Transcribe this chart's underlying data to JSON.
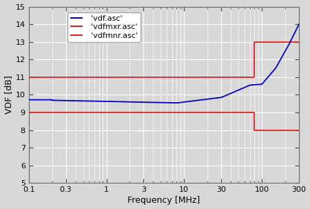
{
  "title": "",
  "xlabel": "Frequency [MHz]",
  "ylabel": "VDF [dB]",
  "xlim_log": [
    0.1,
    300
  ],
  "ylim": [
    5,
    15
  ],
  "yticks": [
    5,
    6,
    7,
    8,
    9,
    10,
    11,
    12,
    13,
    14,
    15
  ],
  "xtick_labels": [
    "0.1",
    "0.3",
    "1",
    "3",
    "10",
    "30",
    "100",
    "300"
  ],
  "xtick_positions": [
    0.1,
    0.3,
    1,
    3,
    10,
    30,
    100,
    300
  ],
  "background_color": "#d8d8d8",
  "grid_color": "#ffffff",
  "blue_color": "#0000cc",
  "red_color": "#dd2222",
  "vdfmxr": {
    "x": [
      0.1,
      80,
      80,
      300
    ],
    "y": [
      11.0,
      11.0,
      13.0,
      13.0
    ]
  },
  "vdfmnr": {
    "x": [
      0.1,
      80,
      80,
      300
    ],
    "y": [
      9.0,
      9.0,
      8.0,
      8.0
    ]
  },
  "legend_labels": [
    "  'vdf.asc'",
    "  'vdfmxr.asc'",
    "  'vdfmnr.asc'"
  ],
  "legend_colors": [
    "#0000cc",
    "#dd2222",
    "#dd2222"
  ],
  "tick_color": "#000000",
  "label_fontsize": 9,
  "tick_fontsize": 8,
  "legend_fontsize": 8
}
